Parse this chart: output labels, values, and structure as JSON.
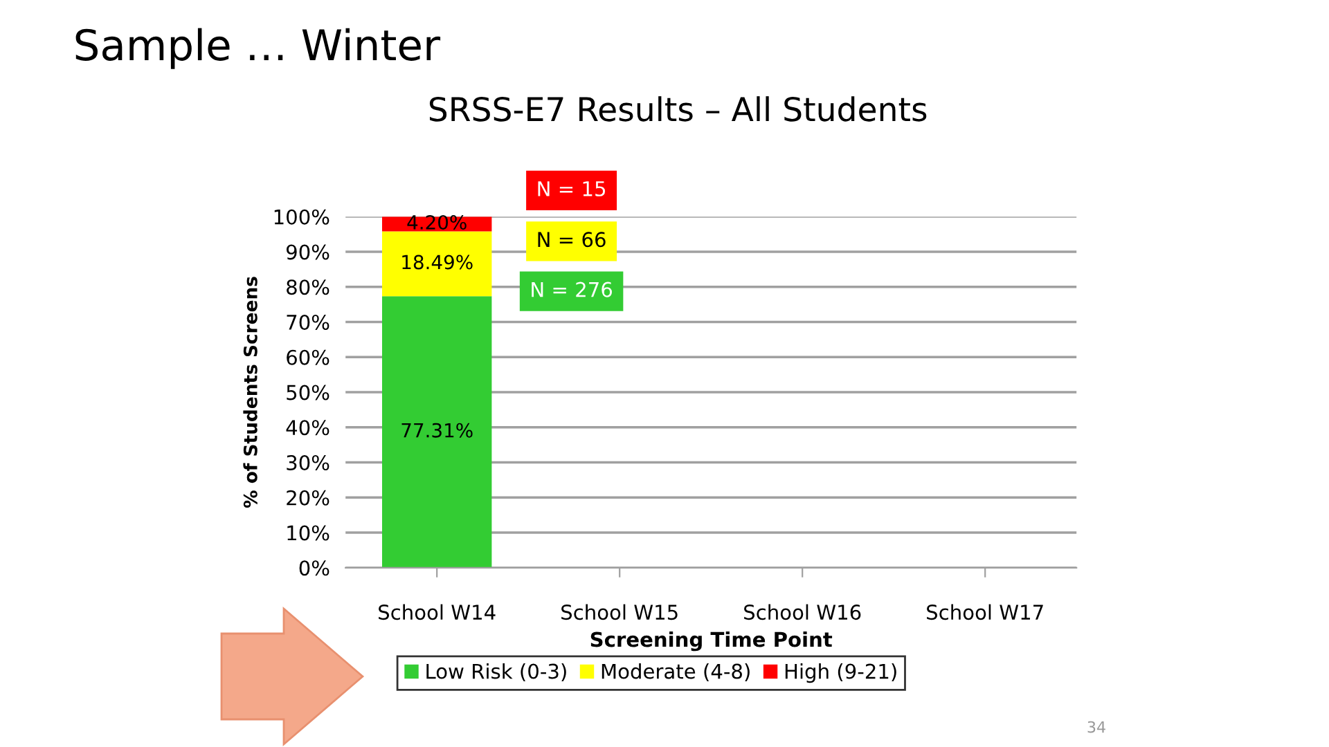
{
  "chart_data": {
    "type": "bar",
    "stacked": true,
    "title": "Sample … Winter",
    "subtitle": "SRSS-E7 Results – All Students",
    "xlabel": "Screening Time Point",
    "ylabel": "% of Students Screens",
    "categories": [
      "School W14",
      "School W15",
      "School W16",
      "School W17"
    ],
    "series": [
      {
        "name": "Low Risk (0-3)",
        "color": "#33cc33",
        "values": [
          77.31,
          null,
          null,
          null
        ],
        "value_labels": [
          "77.31%",
          null,
          null,
          null
        ]
      },
      {
        "name": "Moderate (4-8)",
        "color": "#ffff00",
        "values": [
          18.49,
          null,
          null,
          null
        ],
        "value_labels": [
          "18.49%",
          null,
          null,
          null
        ]
      },
      {
        "name": "High (9-21)",
        "color": "#ff0000",
        "values": [
          4.2,
          null,
          null,
          null
        ],
        "value_labels": [
          "4.20%",
          null,
          null,
          null
        ]
      }
    ],
    "ylim": [
      0,
      100
    ],
    "yticks": [
      {
        "value": 0,
        "label": "0%"
      },
      {
        "value": 10,
        "label": "10%"
      },
      {
        "value": 20,
        "label": "20%"
      },
      {
        "value": 30,
        "label": "30%"
      },
      {
        "value": 40,
        "label": "40%"
      },
      {
        "value": 50,
        "label": "50%"
      },
      {
        "value": 60,
        "label": "60%"
      },
      {
        "value": 70,
        "label": "70%"
      },
      {
        "value": 80,
        "label": "80%"
      },
      {
        "value": 90,
        "label": "90%"
      },
      {
        "value": 100,
        "label": "100%"
      }
    ],
    "grid": "y",
    "legend": "bottom",
    "annotations": [
      "N = 15",
      "N = 66",
      "N = 276",
      "34"
    ]
  }
}
